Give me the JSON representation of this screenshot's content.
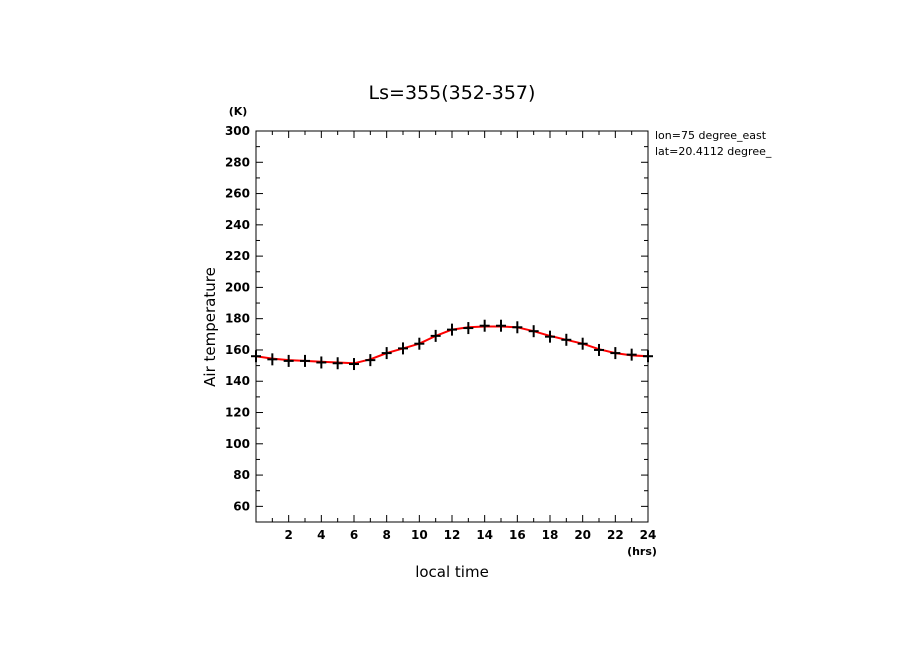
{
  "chart_data": {
    "type": "line",
    "title": "Ls=355(352-357)",
    "xlabel": "local time",
    "ylabel": "Air temperature",
    "x_unit": "(hrs)",
    "y_unit": "(K)",
    "xlim": [
      0,
      24
    ],
    "ylim": [
      50,
      300
    ],
    "x_ticks": [
      2,
      4,
      6,
      8,
      10,
      12,
      14,
      16,
      18,
      20,
      22,
      24
    ],
    "y_ticks": [
      60,
      80,
      100,
      120,
      140,
      160,
      180,
      200,
      220,
      240,
      260,
      280,
      300
    ],
    "grid": false,
    "annotations": [
      "lon=75 degree_east",
      "lat=20.4112 degree_"
    ],
    "colors": {
      "line": "#ff0000",
      "markers": "#000000",
      "axes": "#000000"
    },
    "series": [
      {
        "style": "line",
        "x": [
          0,
          1,
          2,
          3,
          4,
          5,
          6,
          7,
          8,
          9,
          10,
          11,
          12,
          13,
          14,
          15,
          16,
          17,
          18,
          19,
          20,
          21,
          22,
          23,
          24
        ],
        "values": [
          156,
          154.5,
          153.5,
          153,
          152.5,
          152,
          151.5,
          154,
          158,
          161,
          164,
          169,
          173,
          174.5,
          175,
          175,
          174.5,
          172,
          169,
          166.5,
          164,
          160.5,
          158,
          156.5,
          156
        ]
      },
      {
        "style": "markers",
        "x": [
          0,
          1,
          2,
          3,
          4,
          5,
          6,
          7,
          8,
          9,
          10,
          11,
          12,
          13,
          14,
          15,
          16,
          17,
          18,
          19,
          20,
          21,
          22,
          23,
          24
        ],
        "values": [
          156,
          154,
          153,
          153,
          152,
          151.5,
          151,
          153.5,
          158,
          161,
          164,
          169,
          173,
          174,
          175.5,
          175.5,
          174.5,
          172,
          168.5,
          166.5,
          164,
          160,
          158,
          157,
          156
        ]
      }
    ]
  }
}
